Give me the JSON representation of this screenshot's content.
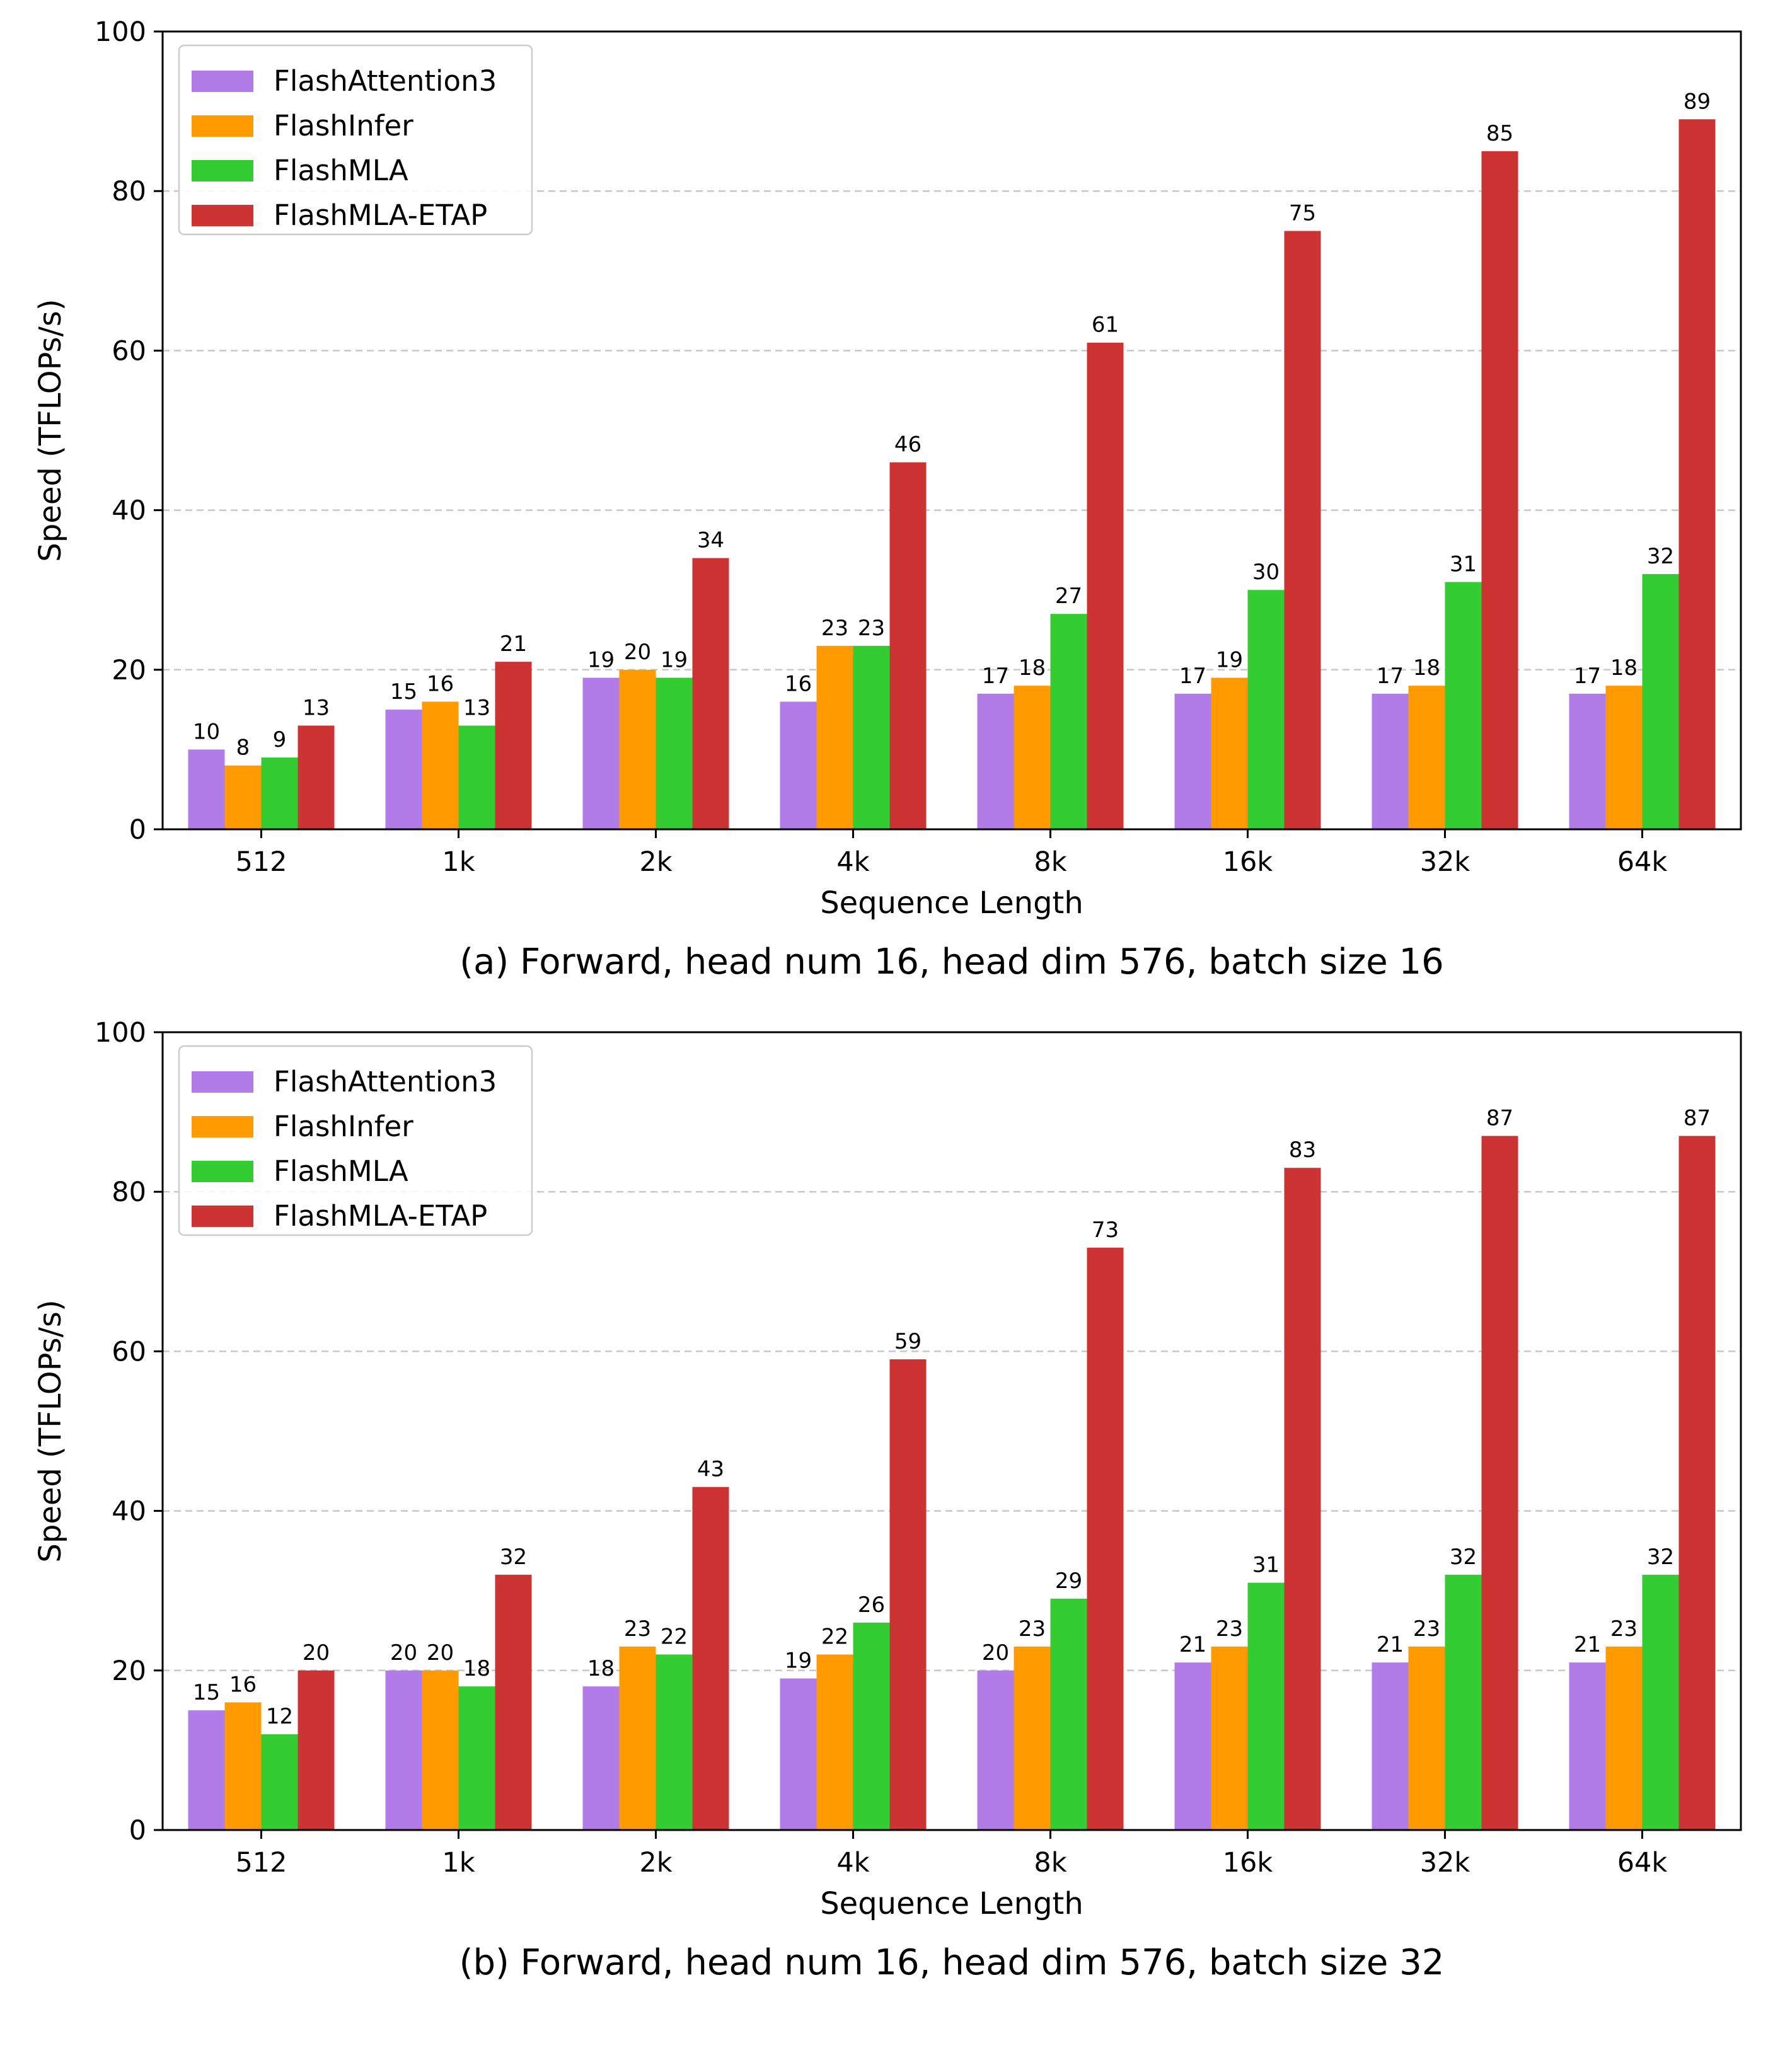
{
  "colors": {
    "FlashAttention3": "#b27ce8",
    "FlashInfer": "#ff9a00",
    "FlashMLA": "#33cc33",
    "FlashMLA-ETAP": "#cc3333"
  },
  "chart_data": [
    {
      "type": "bar",
      "caption": "(a) Forward, head num 16, head dim 576, batch size 16",
      "xlabel": "Sequence Length",
      "ylabel": "Speed (TFLOPs/s)",
      "ylim": [
        0,
        100
      ],
      "yticks": [
        0,
        20,
        40,
        60,
        80,
        100
      ],
      "grid": "horizontal dashed",
      "legend_position": "top-left",
      "categories": [
        "512",
        "1k",
        "2k",
        "4k",
        "8k",
        "16k",
        "32k",
        "64k"
      ],
      "series": [
        {
          "name": "FlashAttention3",
          "values": [
            10,
            15,
            19,
            16,
            17,
            17,
            17,
            17
          ]
        },
        {
          "name": "FlashInfer",
          "values": [
            8,
            16,
            20,
            23,
            18,
            19,
            18,
            18
          ]
        },
        {
          "name": "FlashMLA",
          "values": [
            9,
            13,
            19,
            23,
            27,
            30,
            31,
            32
          ]
        },
        {
          "name": "FlashMLA-ETAP",
          "values": [
            13,
            21,
            34,
            46,
            61,
            75,
            85,
            89
          ]
        }
      ]
    },
    {
      "type": "bar",
      "caption": "(b) Forward, head num 16, head dim 576, batch size 32",
      "xlabel": "Sequence Length",
      "ylabel": "Speed (TFLOPs/s)",
      "ylim": [
        0,
        100
      ],
      "yticks": [
        0,
        20,
        40,
        60,
        80,
        100
      ],
      "grid": "horizontal dashed",
      "legend_position": "top-left",
      "categories": [
        "512",
        "1k",
        "2k",
        "4k",
        "8k",
        "16k",
        "32k",
        "64k"
      ],
      "series": [
        {
          "name": "FlashAttention3",
          "values": [
            15,
            20,
            18,
            19,
            20,
            21,
            21,
            21
          ]
        },
        {
          "name": "FlashInfer",
          "values": [
            16,
            20,
            23,
            22,
            23,
            23,
            23,
            23
          ]
        },
        {
          "name": "FlashMLA",
          "values": [
            12,
            18,
            22,
            26,
            29,
            31,
            32,
            32
          ]
        },
        {
          "name": "FlashMLA-ETAP",
          "values": [
            20,
            32,
            43,
            59,
            73,
            83,
            87,
            87
          ]
        }
      ]
    }
  ]
}
